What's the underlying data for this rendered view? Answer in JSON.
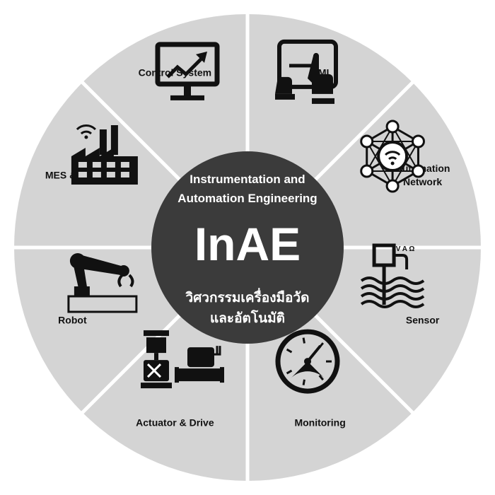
{
  "center": {
    "subtitle_line1": "Instrumentation and",
    "subtitle_line2": "Automation Engineering",
    "title": "InAE",
    "thai_line1": "วิศวกรรมเครื่องมือวัด",
    "thai_line2": "และอัตโนมัติ"
  },
  "segments": [
    {
      "label_lines": [
        "HMI"
      ],
      "icon": "tablet-touch-icon"
    },
    {
      "label_lines": [
        "Automation",
        "Network"
      ],
      "icon": "network-hexagon-icon"
    },
    {
      "label_lines": [
        "Sensor"
      ],
      "icon": "sensor-probe-icon",
      "icon_text": "V A Ω"
    },
    {
      "label_lines": [
        "Monitoring"
      ],
      "icon": "gauge-icon"
    },
    {
      "label_lines": [
        "Actuator & Drive"
      ],
      "icon": "valve-motor-icon"
    },
    {
      "label_lines": [
        "Robot"
      ],
      "icon": "robot-arm-icon"
    },
    {
      "label_lines": [
        "MES & ERP"
      ],
      "icon": "factory-wifi-icon"
    },
    {
      "label_lines": [
        "Control System"
      ],
      "icon": "monitor-chart-icon"
    }
  ],
  "colors": {
    "segment_fill": "#d4d4d4",
    "divider": "#ffffff",
    "center_fill": "#3b3b3b",
    "icon": "#111111",
    "label": "#111111",
    "center_text": "#ffffff"
  }
}
